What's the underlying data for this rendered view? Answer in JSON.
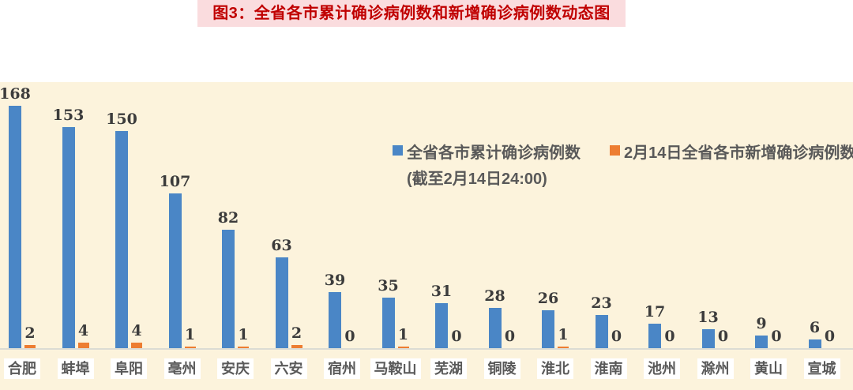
{
  "title": {
    "text": "图3：全省各市累计确诊病例数和新增确诊病例数动态图"
  },
  "legend": {
    "series1_label": "全省各市累计确诊病例数",
    "series1_sublabel": "(截至2月14日24:00)",
    "series2_label": "2月14日全省各市新增确诊病例数"
  },
  "colors": {
    "banner_bg": "#FADCDE",
    "title_red": "#C00000",
    "chart_bg": "#FCF3DC",
    "bar_blue": "#4A86C6",
    "bar_orange": "#ED7D31",
    "value_label": "#3C3C3C",
    "city_label": "#595959",
    "axis_line": "#DCDCD4"
  },
  "chart_data": {
    "type": "bar",
    "title": "图3：全省各市累计确诊病例数和新增确诊病例数动态图",
    "categories": [
      "合肥",
      "蚌埠",
      "阜阳",
      "亳州",
      "安庆",
      "六安",
      "宿州",
      "马鞍山",
      "芜湖",
      "铜陵",
      "淮北",
      "淮南",
      "池州",
      "滁州",
      "黄山",
      "宣城"
    ],
    "series": [
      {
        "name": "全省各市累计确诊病例数(截至2月14日24:00)",
        "color": "#4A86C6",
        "values": [
          168,
          153,
          150,
          107,
          82,
          63,
          39,
          35,
          31,
          28,
          26,
          23,
          17,
          13,
          9,
          6
        ]
      },
      {
        "name": "2月14日全省各市新增确诊病例数",
        "color": "#ED7D31",
        "values": [
          2,
          4,
          4,
          1,
          1,
          2,
          0,
          1,
          0,
          0,
          1,
          0,
          0,
          0,
          0,
          0
        ]
      }
    ],
    "xlabel": "",
    "ylabel": "",
    "ylim": [
      0,
      180
    ],
    "grid": false,
    "data_labels": true,
    "legend_position": "inside-top-right"
  }
}
